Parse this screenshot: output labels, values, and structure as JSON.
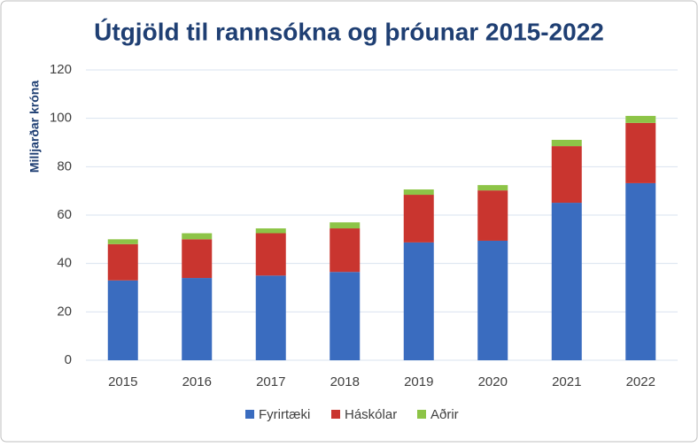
{
  "chart_data": {
    "type": "stacked_bar",
    "title": "Útgjöld til rannsókna og þróunar 2015-2022",
    "y_label": "Milljarðar króna",
    "categories": [
      "2015",
      "2016",
      "2017",
      "2018",
      "2019",
      "2020",
      "2021",
      "2022"
    ],
    "series": [
      {
        "name": "Fyrirtæki",
        "color": "#3a6cbf",
        "values": [
          33,
          34,
          35,
          36.5,
          48.7,
          49.4,
          65.1,
          73.2
        ]
      },
      {
        "name": "Háskólar",
        "color": "#c9352f",
        "values": [
          15,
          16,
          17.5,
          18,
          19.7,
          20.8,
          23.4,
          24.9
        ]
      },
      {
        "name": "Aðrir",
        "color": "#8dc447",
        "values": [
          2,
          2.5,
          2,
          2.5,
          2.2,
          2.2,
          2.6,
          2.9
        ]
      }
    ],
    "ylim": [
      0,
      120
    ],
    "yticks": [
      0,
      20,
      40,
      60,
      80,
      100,
      120
    ],
    "grid": true,
    "legend": "bottom"
  }
}
